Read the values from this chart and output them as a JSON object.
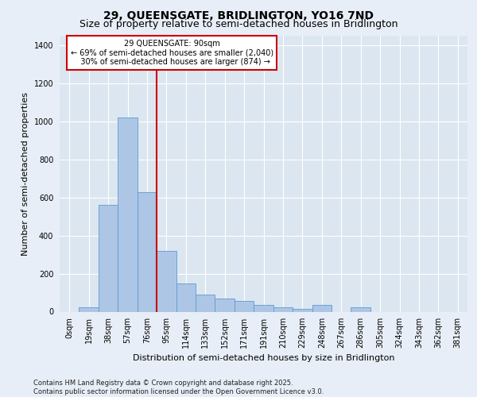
{
  "title_line1": "29, QUEENSGATE, BRIDLINGTON, YO16 7ND",
  "title_line2": "Size of property relative to semi-detached houses in Bridlington",
  "xlabel": "Distribution of semi-detached houses by size in Bridlington",
  "ylabel": "Number of semi-detached properties",
  "footnote": "Contains HM Land Registry data © Crown copyright and database right 2025.\nContains public sector information licensed under the Open Government Licence v3.0.",
  "bar_labels": [
    "0sqm",
    "19sqm",
    "38sqm",
    "57sqm",
    "76sqm",
    "95sqm",
    "114sqm",
    "133sqm",
    "152sqm",
    "171sqm",
    "191sqm",
    "210sqm",
    "229sqm",
    "248sqm",
    "267sqm",
    "286sqm",
    "305sqm",
    "324sqm",
    "343sqm",
    "362sqm",
    "381sqm"
  ],
  "bar_values": [
    0,
    25,
    560,
    1020,
    630,
    320,
    150,
    90,
    70,
    55,
    35,
    25,
    15,
    35,
    0,
    25,
    0,
    0,
    0,
    0,
    0
  ],
  "bar_color": "#adc6e5",
  "bar_edge_color": "#5b9bd5",
  "red_line_x": 4.5,
  "red_line_color": "#cc0000",
  "annotation_text": "29 QUEENSGATE: 90sqm\n← 69% of semi-detached houses are smaller (2,040)\n   30% of semi-detached houses are larger (874) →",
  "annotation_box_color": "#ffffff",
  "annotation_box_edge": "#cc0000",
  "ylim": [
    0,
    1450
  ],
  "yticks": [
    0,
    200,
    400,
    600,
    800,
    1000,
    1200,
    1400
  ],
  "background_color": "#e8eef7",
  "plot_background": "#dce6f0",
  "grid_color": "#ffffff",
  "title1_fontsize": 10,
  "title2_fontsize": 9,
  "ylabel_fontsize": 8,
  "xlabel_fontsize": 8,
  "footnote_fontsize": 6,
  "annot_fontsize": 7,
  "tick_fontsize": 7
}
